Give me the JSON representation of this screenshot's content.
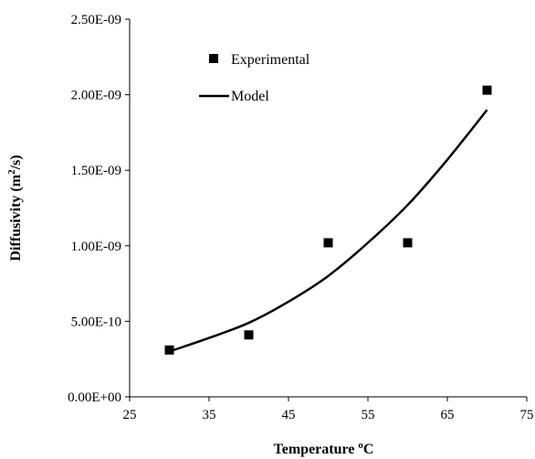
{
  "chart_data": {
    "type": "scatter",
    "xlabel": "Temperature",
    "xlabel_unit_prefix": "o",
    "xlabel_unit": "C",
    "ylabel": "Diffusivity (m",
    "ylabel_sup": "2",
    "ylabel_tail": "/s)",
    "xlim": [
      25,
      75
    ],
    "ylim": [
      0,
      2.5e-09
    ],
    "x_ticks": [
      25,
      35,
      45,
      55,
      65,
      75
    ],
    "y_ticks": [
      0,
      5e-10,
      1e-09,
      1.5e-09,
      2e-09,
      2.5e-09
    ],
    "y_tick_labels": [
      "0.00E+00",
      "5.00E-10",
      "1.00E-09",
      "1.50E-09",
      "2.00E-09",
      "2.50E-09"
    ],
    "grid": false,
    "legend_position": "top-left",
    "series": [
      {
        "name": "Experimental",
        "kind": "points",
        "marker": "square",
        "color": "#000000",
        "x": [
          30,
          40,
          50,
          60,
          70
        ],
        "y": [
          3.1e-10,
          4.1e-10,
          1.02e-09,
          1.02e-09,
          2.03e-09
        ]
      },
      {
        "name": "Model",
        "kind": "line",
        "color": "#000000",
        "x": [
          30,
          35,
          40,
          45,
          50,
          55,
          60,
          65,
          70
        ],
        "y": [
          3e-10,
          3.9e-10,
          4.9e-10,
          6.3e-10,
          8e-10,
          1.02e-09,
          1.27e-09,
          1.57e-09,
          1.9e-09
        ]
      }
    ]
  }
}
